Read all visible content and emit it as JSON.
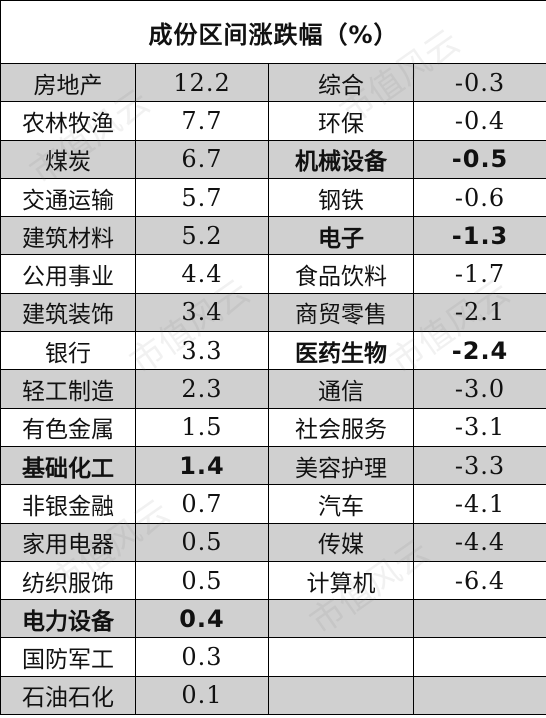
{
  "title": "成份区间涨跌幅（%）",
  "left": [
    {
      "name": "房地产",
      "value": "12.2",
      "bold": false
    },
    {
      "name": "农林牧渔",
      "value": "7.7",
      "bold": false
    },
    {
      "name": "煤炭",
      "value": "6.7",
      "bold": false
    },
    {
      "name": "交通运输",
      "value": "5.7",
      "bold": false
    },
    {
      "name": "建筑材料",
      "value": "5.2",
      "bold": false
    },
    {
      "name": "公用事业",
      "value": "4.4",
      "bold": false
    },
    {
      "name": "建筑装饰",
      "value": "3.4",
      "bold": false
    },
    {
      "name": "银行",
      "value": "3.3",
      "bold": false
    },
    {
      "name": "轻工制造",
      "value": "2.3",
      "bold": false
    },
    {
      "name": "有色金属",
      "value": "1.5",
      "bold": false
    },
    {
      "name": "基础化工",
      "value": "1.4",
      "bold": true
    },
    {
      "name": "非银金融",
      "value": "0.7",
      "bold": false
    },
    {
      "name": "家用电器",
      "value": "0.5",
      "bold": false
    },
    {
      "name": "纺织服饰",
      "value": "0.5",
      "bold": false
    },
    {
      "name": "电力设备",
      "value": "0.4",
      "bold": true
    },
    {
      "name": "国防军工",
      "value": "0.3",
      "bold": false
    },
    {
      "name": "石油石化",
      "value": "0.1",
      "bold": false
    }
  ],
  "right": [
    {
      "name": "综合",
      "value": "-0.3",
      "bold": false
    },
    {
      "name": "环保",
      "value": "-0.4",
      "bold": false
    },
    {
      "name": "机械设备",
      "value": "-0.5",
      "bold": true
    },
    {
      "name": "钢铁",
      "value": "-0.6",
      "bold": false
    },
    {
      "name": "电子",
      "value": "-1.3",
      "bold": true
    },
    {
      "name": "食品饮料",
      "value": "-1.7",
      "bold": false
    },
    {
      "name": "商贸零售",
      "value": "-2.1",
      "bold": false
    },
    {
      "name": "医药生物",
      "value": "-2.4",
      "bold": true
    },
    {
      "name": "通信",
      "value": "-3.0",
      "bold": false
    },
    {
      "name": "社会服务",
      "value": "-3.1",
      "bold": false
    },
    {
      "name": "美容护理",
      "value": "-3.3",
      "bold": false
    },
    {
      "name": "汽车",
      "value": "-4.1",
      "bold": false
    },
    {
      "name": "传媒",
      "value": "-4.4",
      "bold": false
    },
    {
      "name": "计算机",
      "value": "-6.4",
      "bold": false
    }
  ],
  "watermark": "市值风云",
  "colors": {
    "shade": "#d0d0d0",
    "border": "#000000"
  }
}
